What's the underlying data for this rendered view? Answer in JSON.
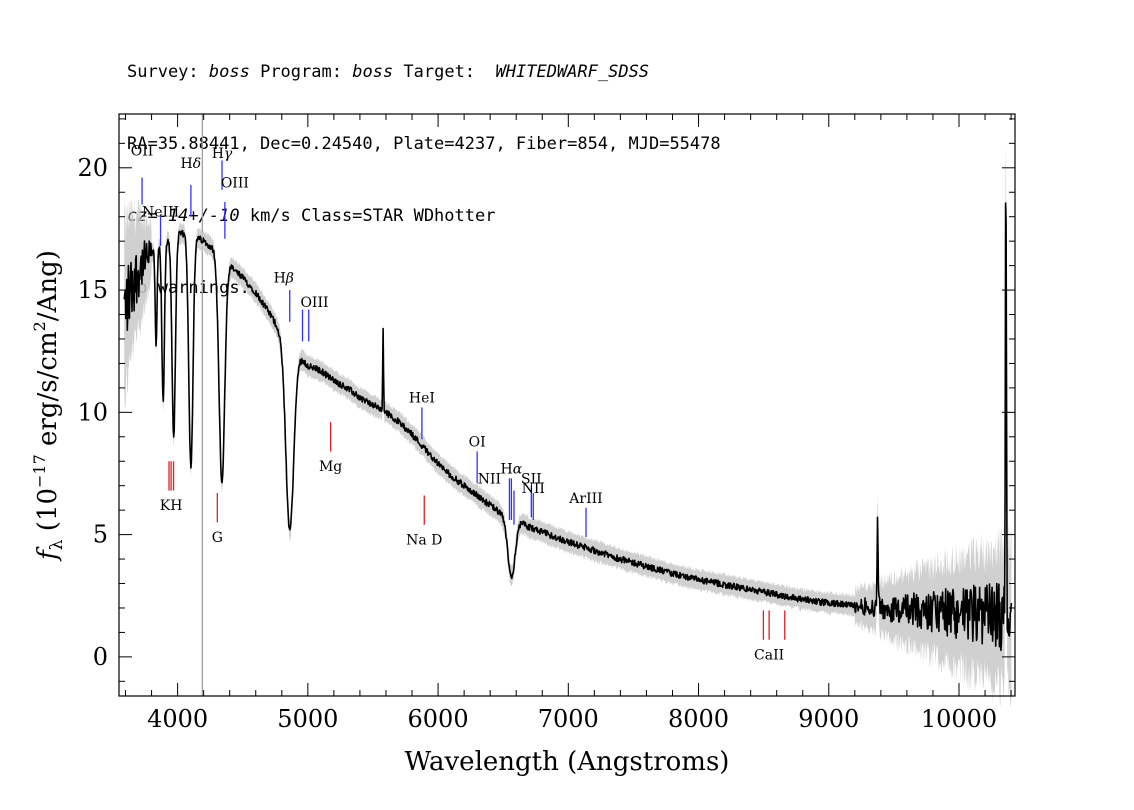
{
  "header": {
    "line1": {
      "survey_label": "Survey: ",
      "survey": "boss",
      "program_label": " Program: ",
      "program": "boss",
      "target_label": " Target:  ",
      "target": "WHITEDWARF_SDSS"
    },
    "line2": "RA=35.88441, Dec=0.24540, Plate=4237, Fiber=854, MJD=55478",
    "line3": {
      "cz": "cz=-14+/-10",
      "rest": " km/s Class=STAR WDhotter"
    },
    "line4": "No warnings."
  },
  "chart_data": {
    "type": "line",
    "xlabel": "Wavelength (Angstroms)",
    "ylabel_parts": {
      "f": "f",
      "lambda": "λ",
      "open": " (10",
      "exp": "−17",
      "mid": " erg/s/cm",
      "sq": "2",
      "close": "/Ang)"
    },
    "xlim": [
      3550,
      10430
    ],
    "ylim": [
      -1.6,
      22.2
    ],
    "x_ticks": [
      4000,
      5000,
      6000,
      7000,
      8000,
      9000,
      10000
    ],
    "x_tick_labels": [
      "4000",
      "5000",
      "6000",
      "7000",
      "8000",
      "9000",
      "10000"
    ],
    "y_ticks": [
      0,
      5,
      10,
      15,
      20
    ],
    "y_tick_labels": [
      "0",
      "5",
      "10",
      "15",
      "20"
    ],
    "colors": {
      "flux": "#000000",
      "error": "#c8c8c8",
      "emission": "#3030ff",
      "absorption": "#e02020",
      "vline": "#a0a0a0"
    },
    "vertical_line_x": 4190,
    "continuum": [
      [
        3580,
        14.0
      ],
      [
        3650,
        15.2
      ],
      [
        3720,
        16.0
      ],
      [
        3800,
        16.5
      ],
      [
        3880,
        16.9
      ],
      [
        3950,
        17.1
      ],
      [
        4000,
        17.3
      ],
      [
        4100,
        17.3
      ],
      [
        4200,
        17.0
      ],
      [
        4300,
        16.6
      ],
      [
        4400,
        16.0
      ],
      [
        4500,
        15.5
      ],
      [
        4600,
        14.9
      ],
      [
        4700,
        14.1
      ],
      [
        4800,
        13.2
      ],
      [
        4900,
        12.5
      ],
      [
        5000,
        11.9
      ],
      [
        5100,
        11.7
      ],
      [
        5200,
        11.3
      ],
      [
        5300,
        11.0
      ],
      [
        5400,
        10.6
      ],
      [
        5500,
        10.3
      ],
      [
        5600,
        10.0
      ],
      [
        5700,
        9.6
      ],
      [
        5800,
        9.1
      ],
      [
        5900,
        8.5
      ],
      [
        6000,
        7.9
      ],
      [
        6100,
        7.4
      ],
      [
        6200,
        7.0
      ],
      [
        6300,
        6.6
      ],
      [
        6400,
        6.2
      ],
      [
        6500,
        5.8
      ],
      [
        6600,
        5.6
      ],
      [
        6700,
        5.3
      ],
      [
        6800,
        5.1
      ],
      [
        6900,
        4.9
      ],
      [
        7000,
        4.7
      ],
      [
        7200,
        4.35
      ],
      [
        7400,
        4.0
      ],
      [
        7600,
        3.7
      ],
      [
        7800,
        3.4
      ],
      [
        8000,
        3.15
      ],
      [
        8200,
        2.95
      ],
      [
        8400,
        2.75
      ],
      [
        8600,
        2.55
      ],
      [
        8800,
        2.35
      ],
      [
        9000,
        2.2
      ],
      [
        9200,
        2.1
      ],
      [
        9400,
        2.0
      ],
      [
        9600,
        1.9
      ],
      [
        9800,
        1.85
      ],
      [
        10000,
        1.8
      ],
      [
        10200,
        1.7
      ],
      [
        10400,
        1.6
      ]
    ],
    "absorption_features": [
      {
        "center": 3835,
        "depth": 4.0,
        "width": 7
      },
      {
        "center": 3889,
        "depth": 6.5,
        "width": 10
      },
      {
        "center": 3970,
        "depth": 8.2,
        "width": 13
      },
      {
        "center": 4102,
        "depth": 9.5,
        "width": 16
      },
      {
        "center": 4340,
        "depth": 9.2,
        "width": 22
      },
      {
        "center": 4861,
        "depth": 7.6,
        "width": 30
      },
      {
        "center": 6563,
        "depth": 2.4,
        "width": 28
      }
    ],
    "emission_spikes": [
      {
        "center": 5578,
        "height": 3.4,
        "width": 3
      },
      {
        "center": 9375,
        "height": 3.6,
        "width": 4
      },
      {
        "center": 10360,
        "height": 17.8,
        "width": 4
      }
    ],
    "line_markers": [
      {
        "label": "OII",
        "x": 3727,
        "type": "emission",
        "y_from": 19.6,
        "y_to": 18.5,
        "label_y": 20.5,
        "label_dx": 0,
        "sup": ""
      },
      {
        "label": "H",
        "sup": "δ",
        "x": 4102,
        "type": "emission",
        "y_from": 19.3,
        "y_to": 18.0,
        "label_y": 20.0,
        "label_dx": 0
      },
      {
        "label": "H",
        "sup": "γ",
        "x": 4341,
        "type": "emission",
        "y_from": 20.3,
        "y_to": 19.1,
        "label_y": 20.4,
        "label_dx": 0
      },
      {
        "label": "OIII",
        "x": 4363,
        "type": "emission",
        "y_from": 18.6,
        "y_to": 17.1,
        "label_y": 19.2,
        "label_dx": 10
      },
      {
        "label": "NeIII",
        "x": 3869,
        "type": "emission",
        "y_from": 18.0,
        "y_to": 16.8,
        "label_y": 18.0,
        "label_dx": 0,
        "sup": ""
      },
      {
        "label": "H",
        "sup": "β",
        "x": 4861,
        "type": "emission",
        "y_from": 15.0,
        "y_to": 13.7,
        "label_y": 15.3,
        "label_dx": -6
      },
      {
        "label": "OIII",
        "x": 4959,
        "type": "emission",
        "y_from": 14.2,
        "y_to": 12.9,
        "label_y": 14.3,
        "label_dx": 12
      },
      {
        "label": "",
        "x": 5007,
        "type": "emission",
        "y_from": 14.2,
        "y_to": 12.9,
        "label_y": 0,
        "label_dx": 0,
        "sup": ""
      },
      {
        "label": "HeI",
        "x": 5876,
        "type": "emission",
        "y_from": 10.2,
        "y_to": 8.9,
        "label_y": 10.4,
        "label_dx": 0,
        "sup": ""
      },
      {
        "label": "OI",
        "x": 6300,
        "type": "emission",
        "y_from": 8.4,
        "y_to": 7.1,
        "label_y": 8.6,
        "label_dx": 0,
        "sup": ""
      },
      {
        "label": "NII",
        "x": 6548,
        "type": "emission",
        "y_from": 7.3,
        "y_to": 5.6,
        "label_y": 7.1,
        "label_dx": -20,
        "sup": ""
      },
      {
        "label": "H",
        "sup": "α",
        "x": 6563,
        "type": "emission",
        "y_from": 7.3,
        "y_to": 5.6,
        "label_y": 7.5,
        "label_dx": 0
      },
      {
        "label": "",
        "x": 6583,
        "type": "emission",
        "y_from": 6.8,
        "y_to": 5.4,
        "label_y": 0,
        "label_dx": 0,
        "sup": ""
      },
      {
        "label": "SII",
        "x": 6716,
        "type": "emission",
        "y_from": 7.0,
        "y_to": 5.7,
        "label_y": 7.1,
        "label_dx": 0,
        "sup": ""
      },
      {
        "label": "NII",
        "x": 6731,
        "type": "emission",
        "y_from": 6.7,
        "y_to": 5.6,
        "label_y": 6.7,
        "label_dx": 0,
        "sup": ""
      },
      {
        "label": "ArIII",
        "x": 7136,
        "type": "emission",
        "y_from": 6.1,
        "y_to": 4.9,
        "label_y": 6.3,
        "label_dx": 0,
        "sup": ""
      },
      {
        "label": "KH",
        "x": 3950,
        "type": "absorption",
        "y_from": 8.0,
        "y_to": 6.8,
        "label_y": 6.0,
        "label_dx": 0,
        "sup": ""
      },
      {
        "label": "",
        "x": 3934,
        "type": "absorption",
        "y_from": 8.0,
        "y_to": 6.8,
        "label_y": 0,
        "label_dx": 0,
        "sup": ""
      },
      {
        "label": "",
        "x": 3969,
        "type": "absorption",
        "y_from": 8.0,
        "y_to": 6.8,
        "label_y": 0,
        "label_dx": 0,
        "sup": ""
      },
      {
        "label": "G",
        "x": 4305,
        "type": "absorption",
        "y_from": 6.7,
        "y_to": 5.5,
        "label_y": 4.7,
        "label_dx": 0,
        "sup": ""
      },
      {
        "label": "Mg",
        "x": 5175,
        "type": "absorption",
        "y_from": 9.6,
        "y_to": 8.4,
        "label_y": 7.6,
        "label_dx": 0,
        "sup": ""
      },
      {
        "label": "Na  D",
        "x": 5894,
        "type": "absorption",
        "y_from": 6.6,
        "y_to": 5.4,
        "label_y": 4.6,
        "label_dx": 0,
        "sup": ""
      },
      {
        "label": "",
        "x": 8498,
        "type": "absorption",
        "y_from": 1.9,
        "y_to": 0.7,
        "label_y": 0,
        "label_dx": 0,
        "sup": ""
      },
      {
        "label": "CaII",
        "x": 8542,
        "type": "absorption",
        "y_from": 1.9,
        "y_to": 0.7,
        "label_y": -0.1,
        "label_dx": 0,
        "sup": ""
      },
      {
        "label": "",
        "x": 8662,
        "type": "absorption",
        "y_from": 1.9,
        "y_to": 0.7,
        "label_y": 0,
        "label_dx": 0,
        "sup": ""
      }
    ]
  }
}
